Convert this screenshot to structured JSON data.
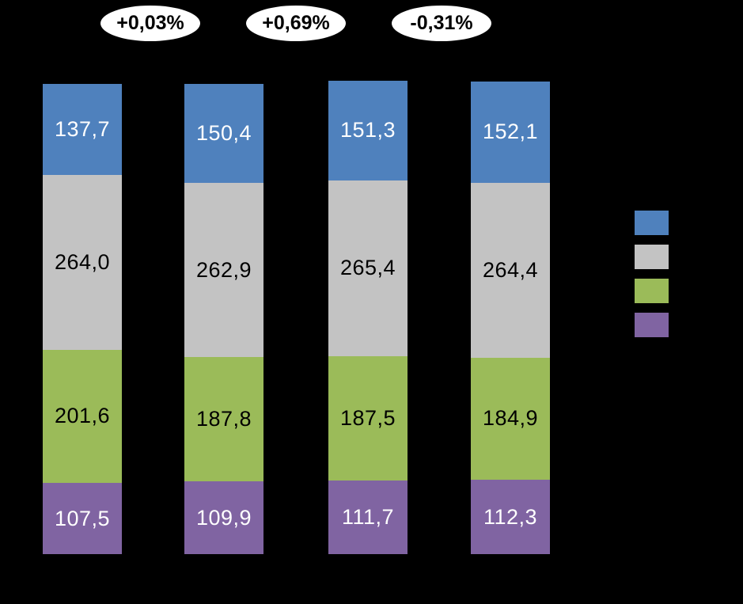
{
  "canvas": {
    "background": "#000000"
  },
  "chart_data": {
    "type": "bar",
    "stacked": true,
    "orientation": "vertical",
    "bar_count": 4,
    "categories": [
      "",
      "",
      "",
      ""
    ],
    "series": [
      {
        "name": "blue-segment",
        "color": "#4f81bd",
        "label_color": "#ffffff",
        "values": [
          137.7,
          150.4,
          151.3,
          152.1
        ],
        "labels": [
          "137,7",
          "150,4",
          "151,3",
          "152,1"
        ]
      },
      {
        "name": "gray-segment",
        "color": "#c3c3c3",
        "label_color": "#000000",
        "values": [
          264.0,
          262.9,
          265.4,
          264.4
        ],
        "labels": [
          "264,0",
          "262,9",
          "265,4",
          "264,4"
        ]
      },
      {
        "name": "green-segment",
        "color": "#9bbb59",
        "label_color": "#000000",
        "values": [
          201.6,
          187.8,
          187.5,
          184.9
        ],
        "labels": [
          "201,6",
          "187,8",
          "187,5",
          "184,9"
        ]
      },
      {
        "name": "purple-segment",
        "color": "#8064a2",
        "label_color": "#ffffff",
        "values": [
          107.5,
          109.9,
          111.7,
          112.3
        ],
        "labels": [
          "107,5",
          "109,9",
          "111,7",
          "112,3"
        ]
      }
    ],
    "totals": [
      710.8,
      711.0,
      715.9,
      713.7
    ],
    "annotations": [
      {
        "text": "+0,03%",
        "between_bars": [
          1,
          2
        ]
      },
      {
        "text": "+0,69%",
        "between_bars": [
          2,
          3
        ]
      },
      {
        "text": "-0,31%",
        "between_bars": [
          3,
          4
        ]
      }
    ],
    "legend": {
      "position": "right",
      "entries": [
        {
          "name": "blue-series",
          "color": "#4f81bd",
          "label": ""
        },
        {
          "name": "gray-series",
          "color": "#c3c3c3",
          "label": ""
        },
        {
          "name": "green-series",
          "color": "#9bbb59",
          "label": ""
        },
        {
          "name": "purple-series",
          "color": "#8064a2",
          "label": ""
        }
      ]
    }
  }
}
